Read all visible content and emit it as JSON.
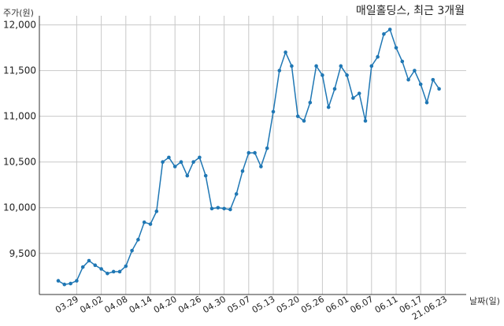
{
  "chart_data": {
    "type": "line",
    "title": "매일홀딩스, 최근 3개월",
    "ylabel": "주가(원)",
    "xlabel": "날짜(일)",
    "ylim": [
      9050,
      12100
    ],
    "yticks": [
      9500,
      10000,
      10500,
      11000,
      11500,
      12000
    ],
    "ytick_labels": [
      "9,500",
      "10,000",
      "10,500",
      "11,000",
      "11,500",
      "12,000"
    ],
    "xtick_labels": [
      "03.29",
      "04.02",
      "04.08",
      "04.14",
      "04.20",
      "04.26",
      "04.30",
      "05.07",
      "05.13",
      "05.20",
      "05.26",
      "06.01",
      "06.07",
      "06.11",
      "06.17",
      "21.06.23"
    ],
    "xtick_index": [
      3,
      7,
      11,
      15,
      19,
      23,
      27,
      31,
      35,
      39,
      43,
      47,
      51,
      55,
      59,
      63
    ],
    "grid": true,
    "series": [
      {
        "color": "#1f77b4",
        "values": [
          9200,
          9160,
          9170,
          9200,
          9350,
          9420,
          9370,
          9330,
          9280,
          9300,
          9300,
          9360,
          9530,
          9650,
          9840,
          9820,
          9960,
          10500,
          10550,
          10450,
          10500,
          10350,
          10500,
          10550,
          10350,
          9990,
          10000,
          9990,
          9980,
          10150,
          10400,
          10600,
          10600,
          10450,
          10650,
          11050,
          11500,
          11700,
          11550,
          11000,
          10950,
          11150,
          11550,
          11450,
          11100,
          11300,
          11550,
          11450,
          11200,
          11250,
          10950,
          11550,
          11650,
          11900,
          11950,
          11750,
          11600,
          11400,
          11500,
          11350,
          11150,
          11400,
          11300
        ]
      }
    ]
  }
}
